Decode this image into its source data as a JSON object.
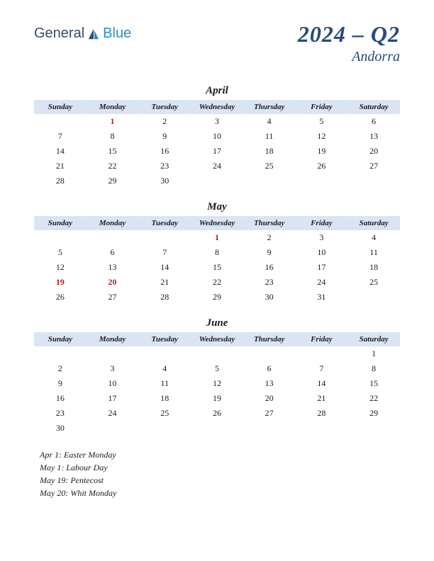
{
  "logo": {
    "general": "General",
    "blue": "Blue"
  },
  "title": {
    "main": "2024 – Q2",
    "sub": "Andorra"
  },
  "colors": {
    "header_bg": "#dae5f4",
    "holiday_text": "#b02020",
    "title_color": "#2a4a7a",
    "logo_general": "#3a4a6b",
    "logo_blue": "#2b8ecb"
  },
  "day_headers": [
    "Sunday",
    "Monday",
    "Tuesday",
    "Wednesday",
    "Thursday",
    "Friday",
    "Saturday"
  ],
  "months": [
    {
      "name": "April",
      "weeks": [
        [
          "",
          "1",
          "2",
          "3",
          "4",
          "5",
          "6"
        ],
        [
          "7",
          "8",
          "9",
          "10",
          "11",
          "12",
          "13"
        ],
        [
          "14",
          "15",
          "16",
          "17",
          "18",
          "19",
          "20"
        ],
        [
          "21",
          "22",
          "23",
          "24",
          "25",
          "26",
          "27"
        ],
        [
          "28",
          "29",
          "30",
          "",
          "",
          "",
          ""
        ]
      ],
      "holidays": [
        "1"
      ]
    },
    {
      "name": "May",
      "weeks": [
        [
          "",
          "",
          "",
          "1",
          "2",
          "3",
          "4"
        ],
        [
          "5",
          "6",
          "7",
          "8",
          "9",
          "10",
          "11"
        ],
        [
          "12",
          "13",
          "14",
          "15",
          "16",
          "17",
          "18"
        ],
        [
          "19",
          "20",
          "21",
          "22",
          "23",
          "24",
          "25"
        ],
        [
          "26",
          "27",
          "28",
          "29",
          "30",
          "31",
          ""
        ]
      ],
      "holidays": [
        "1",
        "19",
        "20"
      ]
    },
    {
      "name": "June",
      "weeks": [
        [
          "",
          "",
          "",
          "",
          "",
          "",
          "1"
        ],
        [
          "2",
          "3",
          "4",
          "5",
          "6",
          "7",
          "8"
        ],
        [
          "9",
          "10",
          "11",
          "12",
          "13",
          "14",
          "15"
        ],
        [
          "16",
          "17",
          "18",
          "19",
          "20",
          "21",
          "22"
        ],
        [
          "23",
          "24",
          "25",
          "26",
          "27",
          "28",
          "29"
        ],
        [
          "30",
          "",
          "",
          "",
          "",
          "",
          ""
        ]
      ],
      "holidays": []
    }
  ],
  "holiday_list": [
    "Apr 1: Easter Monday",
    "May 1: Labour Day",
    "May 19: Pentecost",
    "May 20: Whit Monday"
  ]
}
